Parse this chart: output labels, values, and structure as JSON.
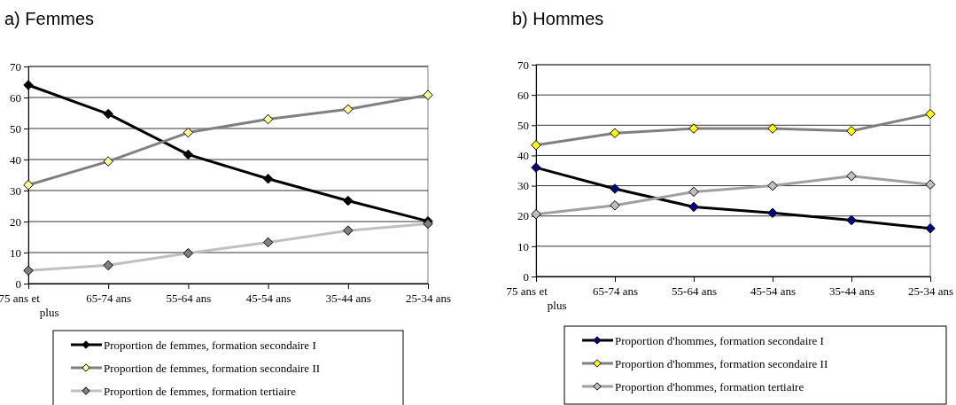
{
  "chart_data": [
    {
      "type": "line",
      "title": "a) Femmes",
      "categories": [
        "75 ans et plus",
        "65-74 ans",
        "55-64 ans",
        "45-54 ans",
        "35-44 ans",
        "25-34 ans"
      ],
      "ylim": [
        0,
        70
      ],
      "yticks": [
        0,
        10,
        20,
        30,
        40,
        50,
        60,
        70
      ],
      "grid": "y",
      "legend": "bottom",
      "marker": "diamond",
      "line_style": "solid",
      "series": [
        {
          "name": "Proportion de femmes, formation secondaire I",
          "color": "#000000",
          "colors": [
            "#000000",
            "#000000",
            "#000000",
            "#000000",
            "#000000",
            "#000000"
          ],
          "values": [
            64,
            54.7,
            41.6,
            33.8,
            26.7,
            20.1
          ]
        },
        {
          "name": "Proportion de femmes, formation secondaire II",
          "color": "#808080",
          "colors": [
            "#ffff99",
            "#ffff99",
            "#ffff99",
            "#ffff99",
            "#ffff99",
            "#ffff99"
          ],
          "values": [
            31.8,
            39.4,
            48.7,
            53,
            56.2,
            60.8
          ]
        },
        {
          "name": "Proportion de femmes, formation tertiaire",
          "color": "#c0c0c0",
          "colors": [
            "#808080",
            "#808080",
            "#808080",
            "#808080",
            "#808080",
            "#808080"
          ],
          "values": [
            4.2,
            5.9,
            9.8,
            13.3,
            17.1,
            19.3
          ]
        }
      ]
    },
    {
      "type": "line",
      "title": "b) Hommes",
      "categories": [
        "75 ans et plus",
        "65-74 ans",
        "55-64 ans",
        "45-54 ans",
        "35-44 ans",
        "25-34 ans"
      ],
      "ylim": [
        0,
        70
      ],
      "yticks": [
        0,
        10,
        20,
        30,
        40,
        50,
        60,
        70
      ],
      "grid": "y",
      "legend": "bottom",
      "marker": "diamond",
      "line_style": "solid",
      "series": [
        {
          "name": "Proportion d'hommes, formation secondaire I",
          "color": "#000000",
          "colors": [
            "#000080",
            "#000080",
            "#000080",
            "#000080",
            "#000080",
            "#000080"
          ],
          "values": [
            36,
            29,
            23,
            21,
            18.6,
            15.9
          ]
        },
        {
          "name": "Proportion d'hommes, formation secondaire II",
          "color": "#808080",
          "colors": [
            "#ffff00",
            "#ffff00",
            "#ffff00",
            "#ffff00",
            "#ffff00",
            "#ffff00"
          ],
          "values": [
            43.4,
            47.4,
            48.9,
            48.9,
            48.1,
            53.7
          ]
        },
        {
          "name": "Proportion d'hommes, formation tertiaire",
          "color": "#a0a0a0",
          "colors": [
            "#c0c0c0",
            "#c0c0c0",
            "#c0c0c0",
            "#c0c0c0",
            "#c0c0c0",
            "#c0c0c0"
          ],
          "values": [
            20.6,
            23.5,
            28,
            30,
            33.2,
            30.4
          ]
        }
      ]
    }
  ]
}
